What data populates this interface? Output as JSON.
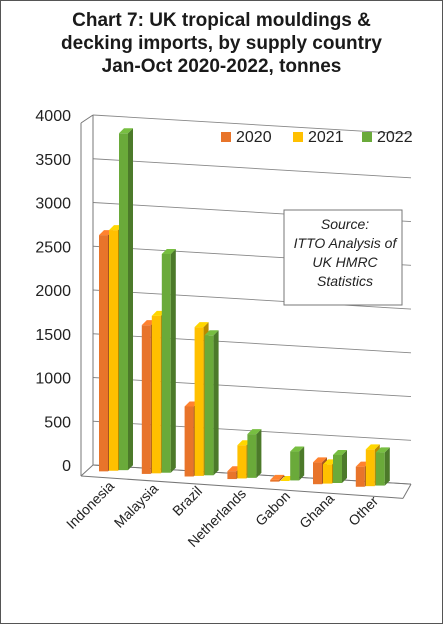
{
  "chart_data": {
    "type": "bar",
    "title_lines": [
      "Chart 7: UK tropical mouldings &",
      "decking imports, by supply country",
      "Jan-Oct 2020-2022, tonnes"
    ],
    "categories": [
      "Indonesia",
      "Malaysia",
      "Brazil",
      "Netherlands",
      "Gabon",
      "Ghana",
      "Other"
    ],
    "series": [
      {
        "name": "2020",
        "values": [
          2700,
          1700,
          800,
          90,
          20,
          250,
          230
        ]
      },
      {
        "name": "2021",
        "values": [
          2750,
          1800,
          1700,
          380,
          0,
          220,
          420
        ]
      },
      {
        "name": "2022",
        "values": [
          3850,
          2500,
          1600,
          500,
          330,
          320,
          380
        ]
      }
    ],
    "colors": [
      "#e8742a",
      "#ffc000",
      "#6aaa3a"
    ],
    "y_ticks": [
      "0",
      "500",
      "1000",
      "1500",
      "2000",
      "2500",
      "3000",
      "3500",
      "4000"
    ],
    "ylim": [
      0,
      4000
    ],
    "grid": true,
    "legend_position": "top-right",
    "annotation": [
      "Source:",
      "ITTO Analysis of",
      "UK HMRC",
      "Statistics"
    ]
  }
}
